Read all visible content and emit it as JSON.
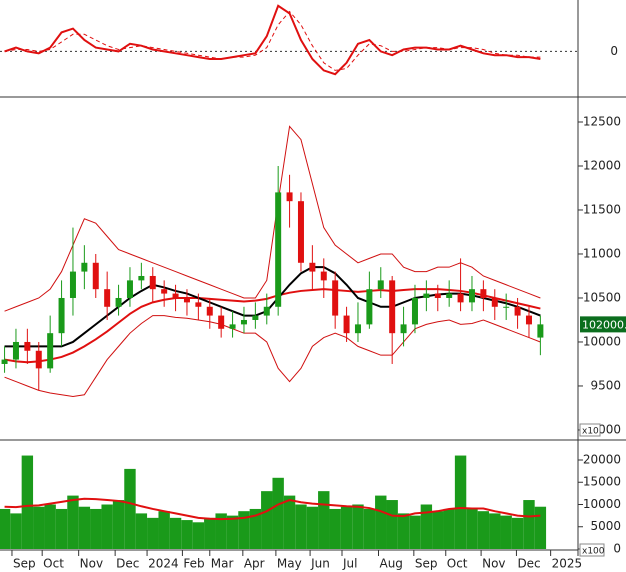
{
  "chart_data": [
    {
      "type": "oscillator",
      "ylim": [
        -24,
        26
      ],
      "yticks": [
        0
      ],
      "x": [
        0,
        1,
        2,
        3,
        4,
        5,
        6,
        7,
        8,
        9,
        10,
        11,
        12,
        13,
        14,
        15,
        16,
        17,
        18,
        19,
        20,
        21,
        22,
        23,
        24,
        25,
        26,
        27,
        28,
        29,
        30,
        31,
        32,
        33,
        34,
        35,
        36,
        37,
        38,
        39,
        40,
        41,
        42,
        43,
        44,
        45,
        46,
        47
      ],
      "series": [
        {
          "color": "#e01010",
          "values": [
            0,
            2,
            0,
            -1,
            2,
            10,
            12,
            6,
            2,
            1,
            0,
            4,
            3,
            1,
            0,
            -1,
            -2,
            -3,
            -4,
            -4,
            -3,
            -2,
            -1,
            8,
            24,
            20,
            6,
            -4,
            -10,
            -12,
            -6,
            4,
            6,
            0,
            -2,
            1,
            2,
            2,
            1,
            1,
            3,
            1,
            -1,
            -2,
            -2,
            -3,
            -3,
            -4
          ]
        },
        {
          "color": "#e01010",
          "dashed": true,
          "values": [
            0,
            1,
            1,
            0,
            1,
            5,
            9,
            9,
            6,
            3,
            1,
            2,
            3,
            2,
            1,
            0,
            -1,
            -2,
            -3,
            -4,
            -3,
            -3,
            -2,
            2,
            14,
            21,
            14,
            3,
            -6,
            -10,
            -9,
            -2,
            4,
            3,
            0,
            0,
            1,
            2,
            2,
            1,
            2,
            2,
            1,
            -1,
            -2,
            -2,
            -3,
            -3
          ]
        }
      ]
    },
    {
      "type": "candlestick",
      "ylim": [
        8886,
        12784
      ],
      "yticks": [
        9000,
        9500,
        10000,
        10500,
        11000,
        11500,
        12000,
        12500
      ],
      "unit_label": "x10",
      "last_price": 10200,
      "last_price_label": "102000.0",
      "x": [
        0,
        1,
        2,
        3,
        4,
        5,
        6,
        7,
        8,
        9,
        10,
        11,
        12,
        13,
        14,
        15,
        16,
        17,
        18,
        19,
        20,
        21,
        22,
        23,
        24,
        25,
        26,
        27,
        28,
        29,
        30,
        31,
        32,
        33,
        34,
        35,
        36,
        37,
        38,
        39,
        40,
        41,
        42,
        43,
        44,
        45,
        46,
        47
      ],
      "open": [
        9750,
        9800,
        10000,
        9900,
        9700,
        10100,
        10500,
        10800,
        10900,
        10600,
        10400,
        10500,
        10700,
        10750,
        10600,
        10550,
        10500,
        10450,
        10400,
        10300,
        10150,
        10200,
        10250,
        10300,
        10400,
        11700,
        11600,
        10900,
        10800,
        10700,
        10300,
        10100,
        10200,
        10600,
        10700,
        10100,
        10200,
        10500,
        10550,
        10500,
        10550,
        10450,
        10600,
        10500,
        10400,
        10400,
        10300,
        10050
      ],
      "high": [
        9950,
        10150,
        10150,
        10000,
        10300,
        10700,
        11300,
        11100,
        11000,
        10800,
        10650,
        10850,
        10900,
        10850,
        10700,
        10650,
        10600,
        10550,
        10500,
        10400,
        10350,
        10400,
        10450,
        10550,
        12000,
        11900,
        11700,
        11100,
        10950,
        10800,
        10400,
        10450,
        10800,
        10850,
        10750,
        10400,
        10650,
        10700,
        10650,
        10700,
        10950,
        10750,
        10700,
        10600,
        10550,
        10500,
        10400,
        10300
      ],
      "low": [
        9650,
        9700,
        9750,
        9450,
        9650,
        9950,
        10300,
        10600,
        10500,
        10250,
        10300,
        10400,
        10600,
        10450,
        10400,
        10350,
        10300,
        10250,
        10150,
        10050,
        10050,
        10100,
        10150,
        10200,
        10300,
        11300,
        10800,
        10600,
        10500,
        10150,
        10000,
        10000,
        10150,
        10500,
        9750,
        9950,
        10100,
        10350,
        10350,
        10400,
        10350,
        10350,
        10350,
        10250,
        10250,
        10150,
        10050,
        9850
      ],
      "close": [
        9800,
        10000,
        9900,
        9700,
        10100,
        10500,
        10800,
        10900,
        10600,
        10400,
        10500,
        10700,
        10750,
        10600,
        10550,
        10500,
        10450,
        10400,
        10300,
        10150,
        10200,
        10250,
        10300,
        10400,
        11700,
        11600,
        10900,
        10800,
        10700,
        10300,
        10100,
        10200,
        10600,
        10700,
        10100,
        10200,
        10500,
        10550,
        10500,
        10550,
        10450,
        10600,
        10500,
        10400,
        10400,
        10300,
        10200,
        10200
      ],
      "up_color": "#1a9a1a",
      "down_color": "#e01010",
      "lines": [
        {
          "color": "#d01010",
          "width": 1,
          "values": [
            10350,
            10400,
            10450,
            10500,
            10600,
            10800,
            11100,
            11400,
            11350,
            11200,
            11050,
            11000,
            10950,
            10900,
            10850,
            10800,
            10750,
            10700,
            10650,
            10600,
            10550,
            10500,
            10500,
            10700,
            11600,
            12450,
            12300,
            11800,
            11300,
            11100,
            11000,
            10900,
            10950,
            11000,
            11000,
            10850,
            10800,
            10800,
            10850,
            10850,
            10900,
            10850,
            10750,
            10700,
            10650,
            10600,
            10550,
            10500
          ]
        },
        {
          "color": "#d01010",
          "width": 1,
          "values": [
            9600,
            9550,
            9500,
            9450,
            9420,
            9400,
            9380,
            9400,
            9600,
            9800,
            9950,
            10100,
            10210,
            10300,
            10300,
            10280,
            10270,
            10250,
            10230,
            10200,
            10150,
            10100,
            10100,
            10000,
            9700,
            9550,
            9700,
            9950,
            10050,
            10100,
            10050,
            9950,
            9900,
            9850,
            9850,
            10000,
            10150,
            10200,
            10230,
            10250,
            10200,
            10210,
            10250,
            10200,
            10150,
            10100,
            10050,
            10000
          ]
        },
        {
          "color": "#e01010",
          "width": 2,
          "values": [
            9800,
            9780,
            9770,
            9780,
            9800,
            9830,
            9880,
            9950,
            10030,
            10120,
            10220,
            10320,
            10400,
            10450,
            10480,
            10500,
            10500,
            10500,
            10490,
            10480,
            10470,
            10460,
            10470,
            10490,
            10530,
            10560,
            10580,
            10590,
            10600,
            10590,
            10580,
            10570,
            10580,
            10590,
            10580,
            10590,
            10600,
            10600,
            10600,
            10590,
            10580,
            10560,
            10530,
            10500,
            10470,
            10440,
            10410,
            10380
          ]
        },
        {
          "color": "#000000",
          "width": 2,
          "values": [
            9950,
            9950,
            9950,
            9950,
            9950,
            9950,
            10000,
            10100,
            10200,
            10300,
            10400,
            10500,
            10580,
            10650,
            10620,
            10580,
            10550,
            10500,
            10450,
            10400,
            10350,
            10300,
            10300,
            10350,
            10500,
            10650,
            10780,
            10850,
            10850,
            10780,
            10650,
            10500,
            10450,
            10400,
            10400,
            10450,
            10500,
            10520,
            10540,
            10550,
            10550,
            10530,
            10500,
            10470,
            10440,
            10400,
            10350,
            10300
          ]
        }
      ]
    },
    {
      "type": "volume",
      "ylim": [
        -225,
        24494
      ],
      "yticks": [
        0,
        5000,
        10000,
        15000,
        20000
      ],
      "unit_label": "x100",
      "color": "#1a9a1a",
      "x": [
        0,
        1,
        2,
        3,
        4,
        5,
        6,
        7,
        8,
        9,
        10,
        11,
        12,
        13,
        14,
        15,
        16,
        17,
        18,
        19,
        20,
        21,
        22,
        23,
        24,
        25,
        26,
        27,
        28,
        29,
        30,
        31,
        32,
        33,
        34,
        35,
        36,
        37,
        38,
        39,
        40,
        41,
        42,
        43,
        44,
        45,
        46,
        47
      ],
      "values": [
        9000,
        8000,
        21000,
        9500,
        10000,
        9000,
        12000,
        9500,
        9000,
        10000,
        11000,
        18000,
        8000,
        7000,
        8500,
        7000,
        6500,
        6000,
        7000,
        8000,
        7500,
        8500,
        9000,
        13000,
        16000,
        12000,
        10000,
        9500,
        13000,
        9000,
        9500,
        10000,
        9000,
        12000,
        11000,
        8000,
        7500,
        10000,
        8500,
        9000,
        21000,
        9000,
        8500,
        8000,
        7500,
        7000,
        11000,
        9500
      ],
      "ma": {
        "color": "#e01010",
        "values": [
          9500,
          9400,
          9700,
          9800,
          10200,
          10600,
          11000,
          11300,
          11200,
          11000,
          10800,
          10300,
          9600,
          9000,
          8500,
          8000,
          7500,
          7000,
          6800,
          6700,
          6800,
          7000,
          7500,
          8500,
          10000,
          11000,
          10500,
          10200,
          10000,
          9800,
          9600,
          9500,
          9200,
          8500,
          7500,
          7400,
          8000,
          8200,
          8500,
          9000,
          9200,
          9100,
          9100,
          8500,
          8000,
          7500,
          7300,
          7500
        ]
      },
      "xlim": [
        -0.4,
        50.3
      ],
      "xticks": [
        {
          "value": 0.65,
          "label": "Sep"
        },
        {
          "value": 3.3,
          "label": "Oct"
        },
        {
          "value": 6.5,
          "label": "Nov"
        },
        {
          "value": 9.7,
          "label": "Dec"
        },
        {
          "value": 12.5,
          "label": "2024"
        },
        {
          "value": 15.6,
          "label": "Feb"
        },
        {
          "value": 18.0,
          "label": "Mar"
        },
        {
          "value": 20.9,
          "label": "Apr"
        },
        {
          "value": 23.8,
          "label": "May"
        },
        {
          "value": 26.8,
          "label": "Jun"
        },
        {
          "value": 29.6,
          "label": "Jul"
        },
        {
          "value": 32.8,
          "label": "Aug"
        },
        {
          "value": 35.9,
          "label": "Sep"
        },
        {
          "value": 38.7,
          "label": "Oct"
        },
        {
          "value": 41.8,
          "label": "Nov"
        },
        {
          "value": 44.9,
          "label": "Dec"
        },
        {
          "value": 47.9,
          "label": "2025"
        }
      ]
    }
  ]
}
